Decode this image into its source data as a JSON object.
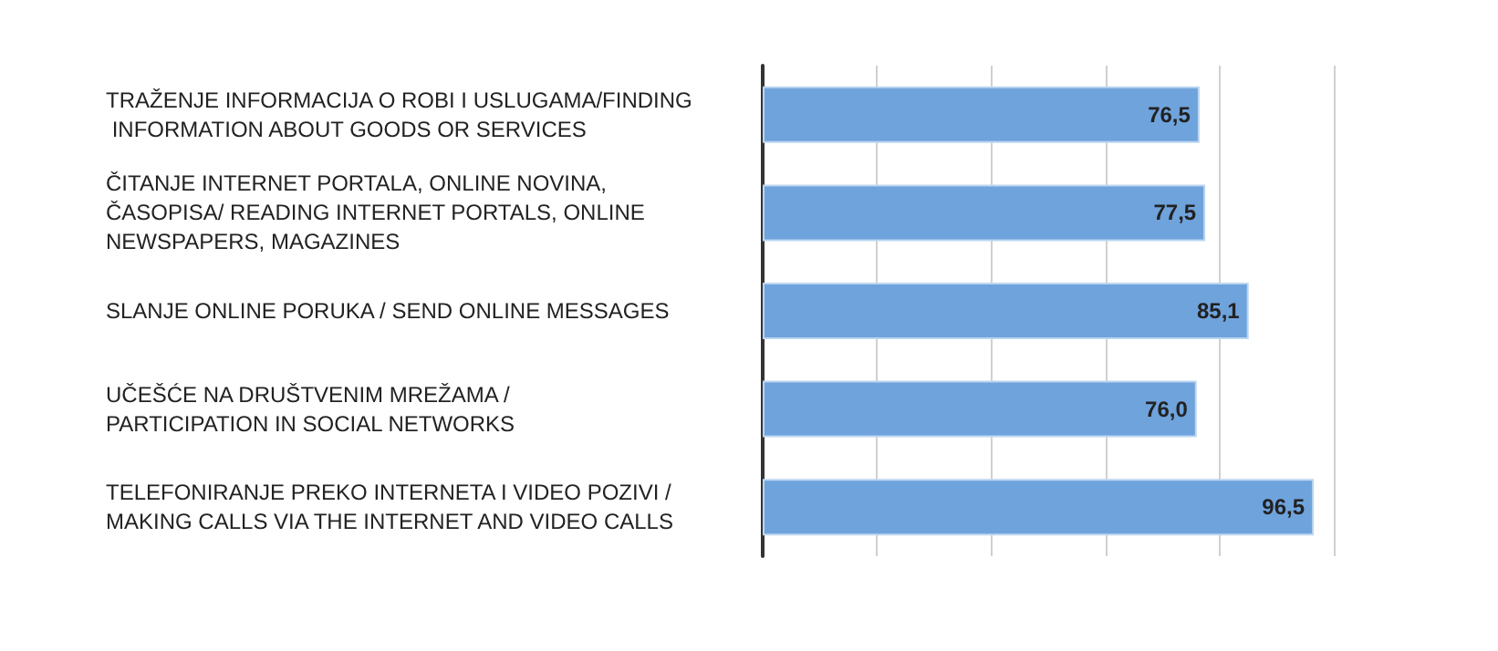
{
  "chart_data": {
    "type": "bar",
    "orientation": "horizontal",
    "categories": [
      "TRAŽENJE INFORMACIJA O ROBI I USLUGAMA/FINDING INFORMATION ABOUT GOODS OR SERVICES",
      "ČITANJE INTERNET PORTALA, ONLINE NOVINA, ČASOPISA/ READING INTERNET PORTALS, ONLINE NEWSPAPERS, MAGAZINES",
      "SLANJE ONLINE PORUKA / SEND ONLINE MESSAGES",
      "UČEŠĆE NA DRUŠTVENIM MREŽAMA / PARTICIPATION IN SOCIAL NETWORKS",
      "TELEFONIRANJE PREKO INTERNETA I VIDEO POZIVI / MAKING CALLS VIA THE INTERNET AND VIDEO CALLS"
    ],
    "values": [
      76.5,
      77.5,
      85.1,
      76.0,
      96.5
    ],
    "value_labels": [
      "76,5",
      "77,5",
      "85,1",
      "76,0",
      "96,5"
    ],
    "color": "#6fa3dc",
    "grid": "x",
    "tick_labels": "y"
  }
}
